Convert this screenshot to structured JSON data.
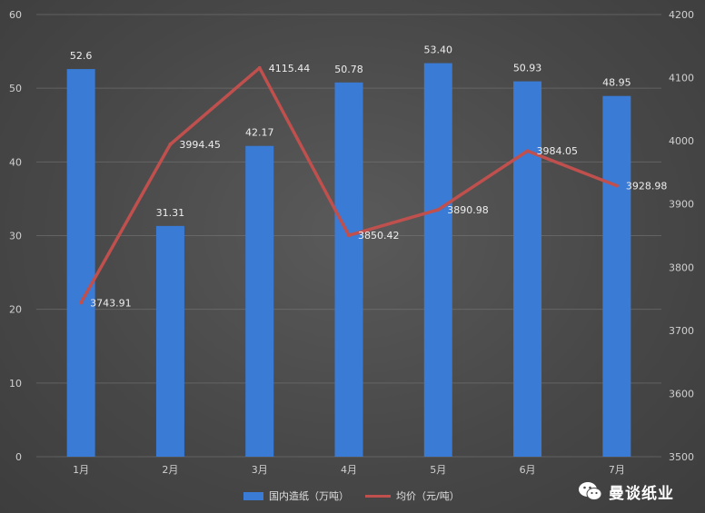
{
  "chart_data": {
    "type": "bar+line",
    "categories": [
      "1月",
      "2月",
      "3月",
      "4月",
      "5月",
      "6月",
      "7月"
    ],
    "series": [
      {
        "name": "国内造纸（万吨）",
        "type": "bar",
        "axis": "left",
        "values": [
          52.6,
          31.31,
          42.17,
          50.78,
          53.4,
          50.93,
          48.95
        ],
        "labels": [
          "52.6",
          "31.31",
          "42.17",
          "50.78",
          "53.40",
          "50.93",
          "48.95"
        ],
        "color": "#3a7bd5"
      },
      {
        "name": "均价（元/吨）",
        "type": "line",
        "axis": "right",
        "values": [
          3743.91,
          3994.45,
          4115.44,
          3850.42,
          3890.98,
          3984.05,
          3928.98
        ],
        "labels": [
          "3743.91",
          "3994.45",
          "4115.44",
          "3850.42",
          "3890.98",
          "3984.05",
          "3928.98"
        ],
        "color": "#c0504d"
      }
    ],
    "y_left": {
      "min": 0,
      "max": 60,
      "ticks": [
        "0",
        "10",
        "20",
        "30",
        "40",
        "50",
        "60"
      ]
    },
    "y_right": {
      "min": 3500,
      "max": 4200,
      "ticks": [
        "3500",
        "3600",
        "3700",
        "3800",
        "3900",
        "4000",
        "4100",
        "4200"
      ]
    },
    "grid": true,
    "legend": "bottom-center"
  },
  "watermark": {
    "text": "曼谈纸业",
    "icon": "wechat-icon"
  }
}
